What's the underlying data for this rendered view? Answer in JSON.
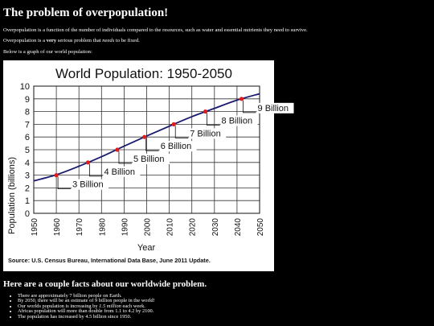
{
  "page": {
    "title": "The problem of overpopulation!",
    "intro": "Overpopulation is a function of the number of individuals compared to the resources, such as water and essential nutrients they need to survive.",
    "serious_pre": "Overpopulation is a ",
    "serious_bold": "very",
    "serious_mid": " serious problem that ",
    "serious_italic": "needs",
    "serious_post": " to be fixed.",
    "graph_intro": "Below is a graph of our world population:"
  },
  "chart_data": {
    "type": "line",
    "title": "World Population: 1950-2050",
    "xlabel": "Year",
    "ylabel": "Population (billions)",
    "xlim": [
      1950,
      2050
    ],
    "ylim": [
      0,
      10
    ],
    "x_ticks": [
      "1950",
      "1960",
      "1970",
      "1980",
      "1990",
      "2000",
      "2010",
      "2020",
      "2030",
      "2040",
      "2050"
    ],
    "y_ticks": [
      "0",
      "1",
      "2",
      "3",
      "4",
      "5",
      "6",
      "7",
      "8",
      "9",
      "10"
    ],
    "grid": true,
    "line_color": "#1a1a6e",
    "marker_color": "#e01b1b",
    "series": [
      {
        "x": [
          1950,
          1960,
          1970,
          1980,
          1990,
          2000,
          2010,
          2020,
          2030,
          2040,
          2050
        ],
        "values": [
          2.55,
          3.03,
          3.7,
          4.45,
          5.28,
          6.08,
          6.85,
          7.6,
          8.25,
          8.9,
          9.4
        ]
      }
    ],
    "milestones": [
      {
        "x": 1960,
        "y": 3,
        "label": "3 Billion"
      },
      {
        "x": 1974,
        "y": 4,
        "label": "4 Billion"
      },
      {
        "x": 1987,
        "y": 5,
        "label": "5 Billion"
      },
      {
        "x": 1999,
        "y": 6,
        "label": "6 Billion"
      },
      {
        "x": 2012,
        "y": 7,
        "label": "7 Billion"
      },
      {
        "x": 2026,
        "y": 8,
        "label": "8 Billion"
      },
      {
        "x": 2042,
        "y": 9,
        "label": "9 Billion"
      }
    ],
    "source": "Source: U.S. Census Bureau, International Data Base, June 2011 Update."
  },
  "facts": {
    "heading": "Here are a couple facts about our worldwide problem.",
    "items": [
      {
        "text": "There are approximately 7 billion people on Earth."
      },
      {
        "text": "By 2050, there will be an estimate of 9 billion people in the world!"
      },
      {
        "pre": "Our worlds population is increasing by ",
        "italic": "1.5 million",
        "post": " each week."
      },
      {
        "text": "Africas population will more than double from 1.1 to 4.2 by 2100."
      },
      {
        "text": "The population has increased by 4.5 billion since 1950."
      }
    ]
  }
}
